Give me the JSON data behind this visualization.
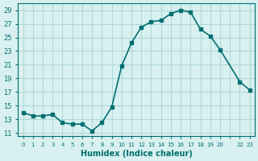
{
  "x": [
    0,
    1,
    2,
    3,
    4,
    5,
    6,
    7,
    8,
    9,
    10,
    11,
    12,
    13,
    14,
    15,
    16,
    17,
    18,
    19,
    20,
    22,
    23
  ],
  "y": [
    14.0,
    13.5,
    13.5,
    13.7,
    12.5,
    12.3,
    12.3,
    11.3,
    12.5,
    14.8,
    20.8,
    24.2,
    26.5,
    27.3,
    27.5,
    28.5,
    29.0,
    28.7,
    26.2,
    25.2,
    23.2,
    18.5,
    17.3
  ],
  "line_color": "#007070",
  "marker_color": "#007070",
  "bg_color": "#d8f0f0",
  "grid_color": "#b0d8d8",
  "xlabel": "Humidex (Indice chaleur)",
  "xlim": [
    -0.5,
    23.5
  ],
  "ylim": [
    10.5,
    30.0
  ],
  "yticks": [
    11,
    13,
    15,
    17,
    19,
    21,
    23,
    25,
    27,
    29
  ],
  "xtick_positions": [
    0,
    1,
    2,
    3,
    4,
    5,
    6,
    7,
    8,
    9,
    10,
    11,
    12,
    13,
    14,
    15,
    16,
    17,
    18,
    19,
    20,
    21,
    22,
    23
  ],
  "xtick_labels": [
    "0",
    "1",
    "2",
    "3",
    "4",
    "5",
    "6",
    "7",
    "8",
    "9",
    "10",
    "11",
    "12",
    "13",
    "14",
    "15",
    "16",
    "17",
    "18",
    "19",
    "20",
    "",
    "22",
    "23"
  ],
  "tick_color": "#007070",
  "label_color": "#007070"
}
